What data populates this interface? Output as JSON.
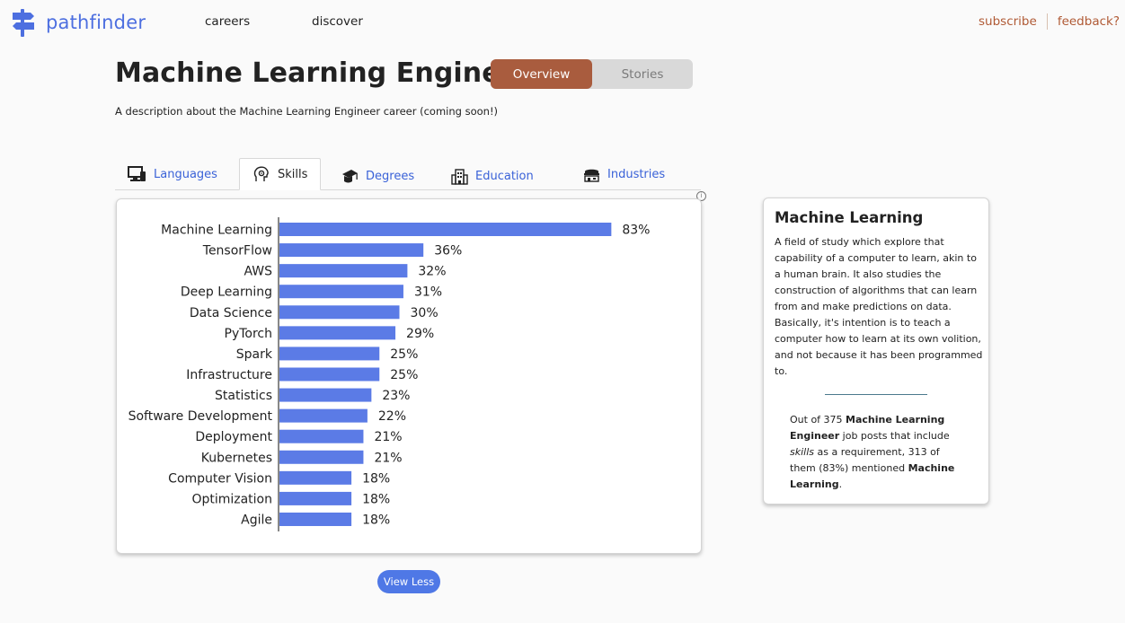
{
  "header": {
    "logo_text": "pathfinder",
    "nav": [
      "careers",
      "discover"
    ],
    "subscribe": "subscribe",
    "feedback": "feedback?"
  },
  "page": {
    "title": "Machine Learning Engineer",
    "toggle": {
      "overview": "Overview",
      "stories": "Stories"
    },
    "description": "A description about the Machine Learning Engineer career (coming soon!)"
  },
  "tabs": [
    {
      "label": "Languages",
      "icon": "computer-icon"
    },
    {
      "label": "Skills",
      "icon": "brain-gear-icon",
      "active": true
    },
    {
      "label": "Degrees",
      "icon": "graduation-cap-icon"
    },
    {
      "label": "Education",
      "icon": "building-icon"
    },
    {
      "label": "Industries",
      "icon": "factory-icon"
    }
  ],
  "info_icon": "i",
  "view_less": "View Less",
  "colors": {
    "bar": "#5b7be6",
    "accent": "#a95c3e",
    "link": "#3a62d8"
  },
  "chart_data": {
    "type": "bar",
    "orientation": "horizontal",
    "categories": [
      "Machine Learning",
      "TensorFlow",
      "AWS",
      "Deep Learning",
      "Data Science",
      "PyTorch",
      "Spark",
      "Infrastructure",
      "Statistics",
      "Software Development",
      "Deployment",
      "Kubernetes",
      "Computer Vision",
      "Optimization",
      "Agile"
    ],
    "values": [
      83,
      36,
      32,
      31,
      30,
      29,
      25,
      25,
      23,
      22,
      21,
      21,
      18,
      18,
      18
    ],
    "labels": [
      "83%",
      "36%",
      "32%",
      "31%",
      "30%",
      "29%",
      "25%",
      "25%",
      "23%",
      "22%",
      "21%",
      "21%",
      "18%",
      "18%",
      "18%"
    ],
    "xlim": [
      0,
      100
    ],
    "grid": false
  },
  "side": {
    "title": "Machine Learning",
    "description": "A field of study which explore that capability of a computer to learn, akin to a human brain. It also studies the construction of algorithms that can learn from and make predictions on data. Basically, it's intention is to teach a computer how to learn at its own volition, and not because it has been programmed to.",
    "stat": {
      "prefix": "Out of 375 ",
      "career": "Machine Learning Engineer",
      "middle": " job posts that include ",
      "category": "skills",
      "suffix": " as a requirement, 313 of them (83%) mentioned ",
      "skill": "Machine Learning",
      "end": "."
    }
  }
}
